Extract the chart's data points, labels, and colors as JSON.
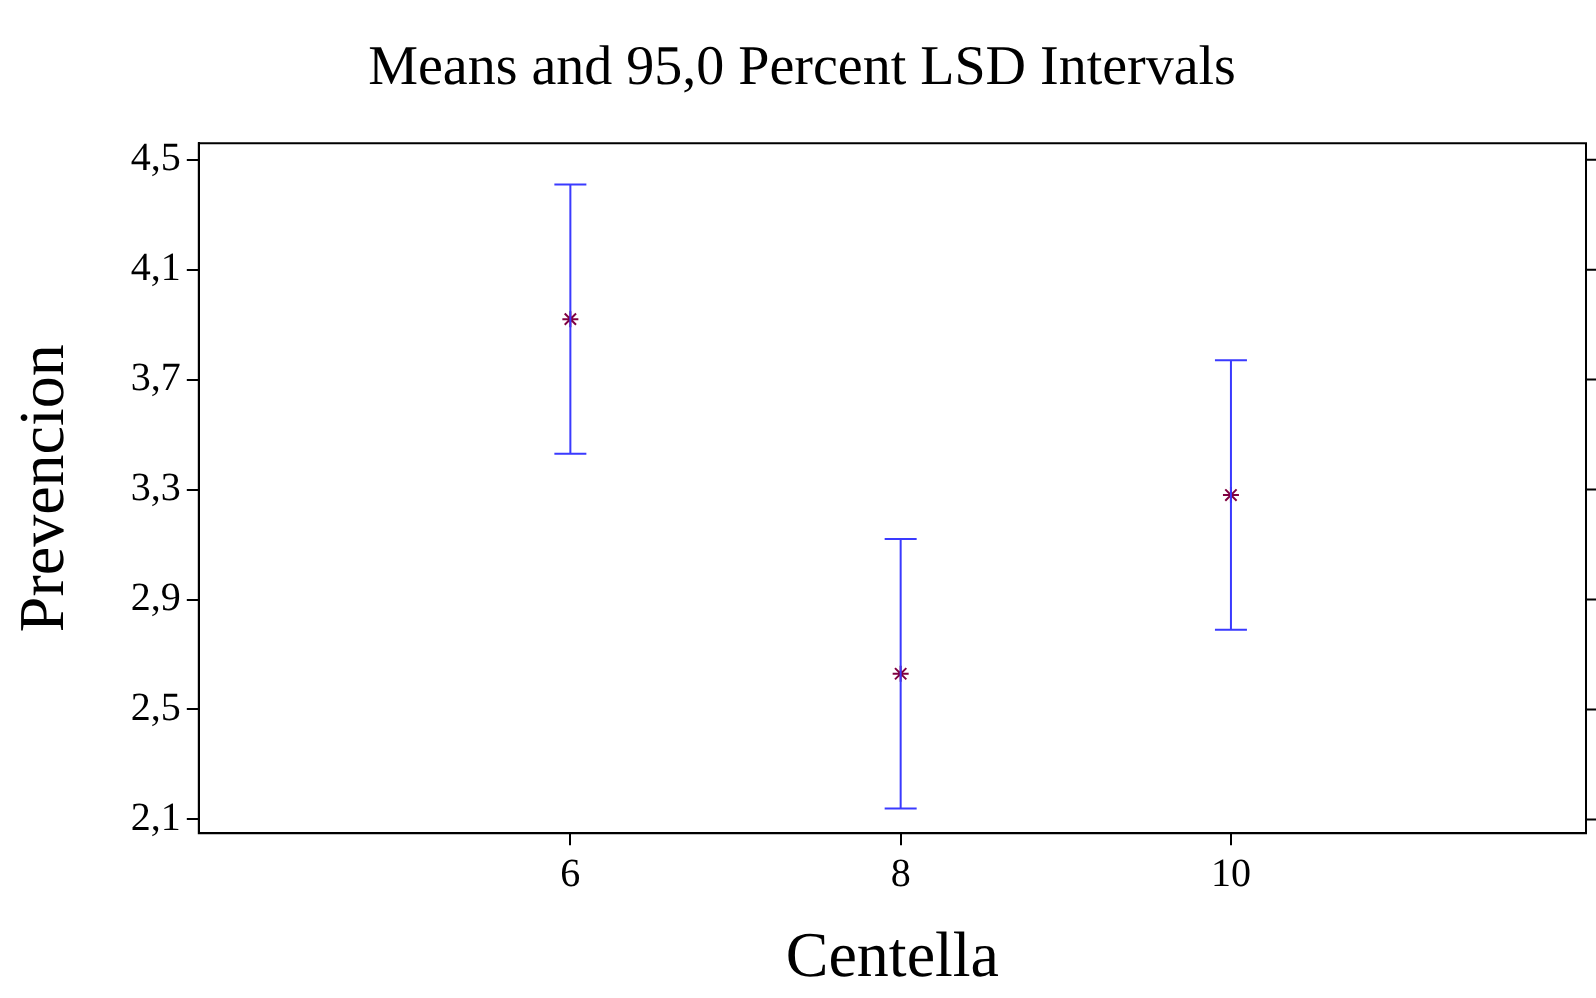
{
  "chart_data": {
    "type": "scatter",
    "title": "Means and 95,0 Percent LSD Intervals",
    "xlabel": "Centella",
    "ylabel": "Prevencion",
    "x": [
      6,
      8,
      10
    ],
    "series": [
      {
        "color": "#800040",
        "values": [
          3.92,
          2.63,
          3.28
        ],
        "errors": [
          0.49,
          0.49,
          0.49
        ]
      }
    ],
    "xlim": [
      3.75,
      12.15
    ],
    "xticks": [
      6,
      8,
      10
    ],
    "ylim": [
      2.05,
      4.56
    ],
    "yticks": [
      {
        "value": 2.1,
        "label": "2,1"
      },
      {
        "value": 2.5,
        "label": "2,5"
      },
      {
        "value": 2.9,
        "label": "2,9"
      },
      {
        "value": 3.3,
        "label": "3,3"
      },
      {
        "value": 3.7,
        "label": "3,7"
      },
      {
        "value": 4.1,
        "label": "4,1"
      },
      {
        "value": 4.5,
        "label": "4,5"
      }
    ],
    "grid": false,
    "legend": false,
    "marker": "cross"
  }
}
